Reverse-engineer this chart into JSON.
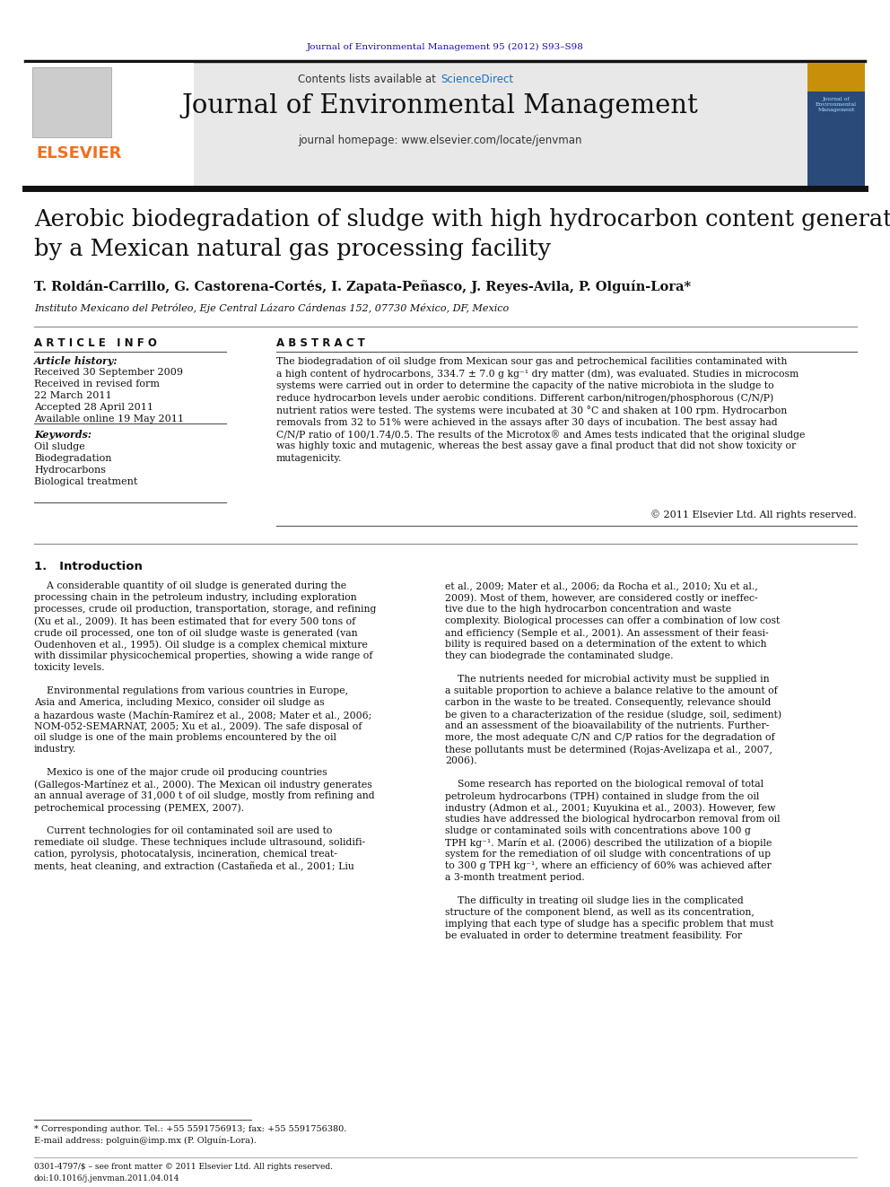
{
  "bg_color": "#ffffff",
  "journal_header_text": "Journal of Environmental Management 95 (2012) S93–S98",
  "journal_header_color": "#1a0dab",
  "contents_text": "Contents lists available at ",
  "sciencedirect_text": "ScienceDirect",
  "sciencedirect_color": "#1a6dcc",
  "journal_name": "Journal of Environmental Management",
  "homepage_text": "journal homepage: www.elsevier.com/locate/jenvman",
  "header_bg": "#e8e8e8",
  "dark_bar_color": "#222222",
  "elsevier_color": "#f07020",
  "title": "Aerobic biodegradation of sludge with high hydrocarbon content generated\nby a Mexican natural gas processing facility",
  "authors": "T. Roldán-Carrillo, G. Castorena-Cortés, I. Zapata-Peñasco, J. Reyes-Avila, P. Olguín-Lora*",
  "affiliation": "Instituto Mexicano del Petróleo, Eje Central Lázaro Cárdenas 152, 07730 México, DF, Mexico",
  "article_info_title": "A R T I C L E   I N F O",
  "abstract_title": "A B S T R A C T",
  "article_history_label": "Article history:",
  "received_1": "Received 30 September 2009",
  "received_revised": "Received in revised form",
  "received_revised_date": "22 March 2011",
  "accepted": "Accepted 28 April 2011",
  "available": "Available online 19 May 2011",
  "keywords_label": "Keywords:",
  "keywords": [
    "Oil sludge",
    "Biodegradation",
    "Hydrocarbons",
    "Biological treatment"
  ],
  "abstract_text": "The biodegradation of oil sludge from Mexican sour gas and petrochemical facilities contaminated with a high content of hydrocarbons, 334.7 ± 7.0 g kg⁻¹ dry matter (dm), was evaluated. Studies in microcosm systems were carried out in order to determine the capacity of the native microbiota in the sludge to reduce hydrocarbon levels under aerobic conditions. Different carbon/nitrogen/phosphorous (C/N/P) nutrient ratios were tested. The systems were incubated at 30 °C and shaken at 100 rpm. Hydrocarbon removals from 32 to 51% were achieved in the assays after 30 days of incubation. The best assay had C/N/P ratio of 100/1.74/0.5. The results of the Microtox® and Ames tests indicated that the original sludge was highly toxic and mutagenic, whereas the best assay gave a final product that did not show toxicity or mutagenicity.",
  "copyright_text": "© 2011 Elsevier Ltd. All rights reserved.",
  "intro_heading": "1.   Introduction",
  "footnote_star": "* Corresponding author. Tel.: +55 5591756913; fax: +55 5591756380.",
  "footnote_email": "E-mail address: polguin@imp.mx (P. Olguín-Lora).",
  "footer_left": "0301-4797/$ – see front matter © 2011 Elsevier Ltd. All rights reserved.\ndoi:10.1016/j.jenvman.2011.04.014",
  "link_color": "#1a4daa",
  "intro1_lines": [
    "    A considerable quantity of oil sludge is generated during the",
    "processing chain in the petroleum industry, including exploration",
    "processes, crude oil production, transportation, storage, and refining",
    "(Xu et al., 2009). It has been estimated that for every 500 tons of",
    "crude oil processed, one ton of oil sludge waste is generated (van",
    "Oudenhoven et al., 1995). Oil sludge is a complex chemical mixture",
    "with dissimilar physicochemical properties, showing a wide range of",
    "toxicity levels.",
    "",
    "    Environmental regulations from various countries in Europe,",
    "Asia and America, including Mexico, consider oil sludge as",
    "a hazardous waste (Machín-Ramírez et al., 2008; Mater et al., 2006;",
    "NOM-052-SEMARNAT, 2005; Xu et al., 2009). The safe disposal of",
    "oil sludge is one of the main problems encountered by the oil",
    "industry.",
    "",
    "    Mexico is one of the major crude oil producing countries",
    "(Gallegos-Martínez et al., 2000). The Mexican oil industry generates",
    "an annual average of 31,000 t of oil sludge, mostly from refining and",
    "petrochemical processing (PEMEX, 2007).",
    "",
    "    Current technologies for oil contaminated soil are used to",
    "remediate oil sludge. These techniques include ultrasound, solidifi-",
    "cation, pyrolysis, photocatalysis, incineration, chemical treat-",
    "ments, heat cleaning, and extraction (Castañeda et al., 2001; Liu"
  ],
  "intro2_lines": [
    "et al., 2009; Mater et al., 2006; da Rocha et al., 2010; Xu et al.,",
    "2009). Most of them, however, are considered costly or ineffec-",
    "tive due to the high hydrocarbon concentration and waste",
    "complexity. Biological processes can offer a combination of low cost",
    "and efficiency (Semple et al., 2001). An assessment of their feasi-",
    "bility is required based on a determination of the extent to which",
    "they can biodegrade the contaminated sludge.",
    "",
    "    The nutrients needed for microbial activity must be supplied in",
    "a suitable proportion to achieve a balance relative to the amount of",
    "carbon in the waste to be treated. Consequently, relevance should",
    "be given to a characterization of the residue (sludge, soil, sediment)",
    "and an assessment of the bioavailability of the nutrients. Further-",
    "more, the most adequate C/N and C/P ratios for the degradation of",
    "these pollutants must be determined (Rojas-Avelizapa et al., 2007,",
    "2006).",
    "",
    "    Some research has reported on the biological removal of total",
    "petroleum hydrocarbons (TPH) contained in sludge from the oil",
    "industry (Admon et al., 2001; Kuyukina et al., 2003). However, few",
    "studies have addressed the biological hydrocarbon removal from oil",
    "sludge or contaminated soils with concentrations above 100 g",
    "TPH kg⁻¹. Marín et al. (2006) described the utilization of a biopile",
    "system for the remediation of oil sludge with concentrations of up",
    "to 300 g TPH kg⁻¹, where an efficiency of 60% was achieved after",
    "a 3-month treatment period.",
    "",
    "    The difficulty in treating oil sludge lies in the complicated",
    "structure of the component blend, as well as its concentration,",
    "implying that each type of sludge has a specific problem that must",
    "be evaluated in order to determine treatment feasibility. For"
  ]
}
